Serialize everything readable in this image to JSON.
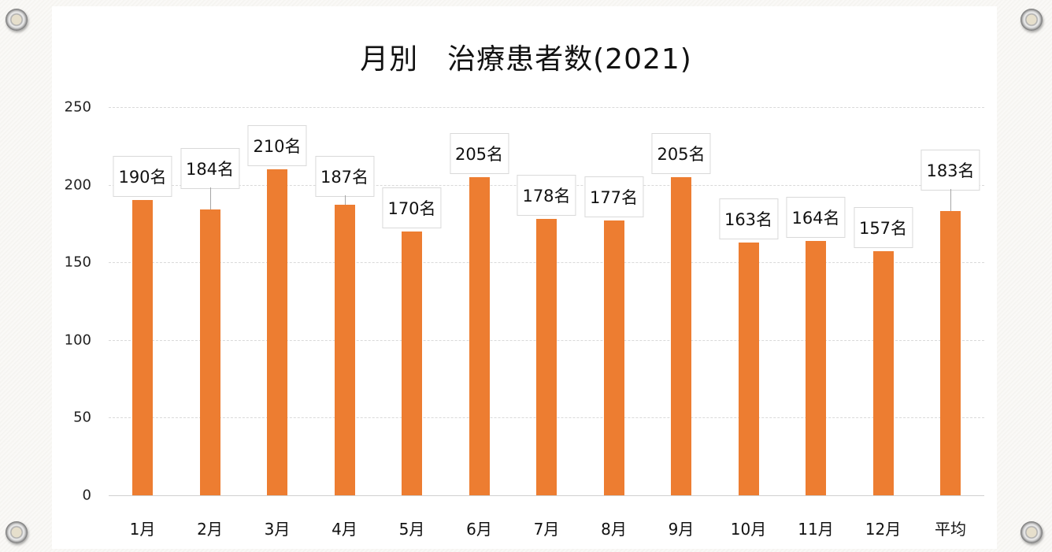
{
  "chart_data": {
    "type": "bar",
    "title": "月別　治療患者数(2021)",
    "xlabel": "",
    "ylabel": "",
    "categories": [
      "1月",
      "2月",
      "3月",
      "4月",
      "5月",
      "6月",
      "7月",
      "8月",
      "9月",
      "10月",
      "11月",
      "12月",
      "平均"
    ],
    "values": [
      190,
      184,
      210,
      187,
      170,
      205,
      178,
      177,
      205,
      163,
      164,
      157,
      183
    ],
    "data_labels": [
      "190名",
      "184名",
      "210名",
      "187名",
      "170名",
      "205名",
      "178名",
      "177名",
      "205名",
      "163名",
      "164名",
      "157名",
      "183名"
    ],
    "ylim": [
      0,
      250
    ],
    "yticks": [
      "0",
      "50",
      "100",
      "150",
      "200",
      "250"
    ],
    "grid": true,
    "legend": "none",
    "bar_color": "#ed7d31"
  },
  "label_offsets": [
    {
      "dy": 0,
      "leader": false
    },
    {
      "dy": -22,
      "leader": true
    },
    {
      "dy": 0,
      "leader": false
    },
    {
      "dy": -6,
      "leader": true
    },
    {
      "dy": 0,
      "leader": false
    },
    {
      "dy": 0,
      "leader": false
    },
    {
      "dy": 0,
      "leader": false
    },
    {
      "dy": 0,
      "leader": false
    },
    {
      "dy": 0,
      "leader": false
    },
    {
      "dy": 0,
      "leader": false
    },
    {
      "dy": 0,
      "leader": false
    },
    {
      "dy": 0,
      "leader": false
    },
    {
      "dy": -22,
      "leader": true
    }
  ]
}
